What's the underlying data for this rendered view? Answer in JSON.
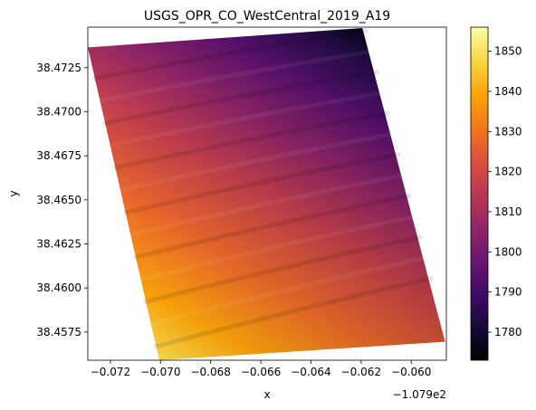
{
  "chart_data": {
    "type": "heatmap",
    "title": "USGS_OPR_CO_WestCentral_2019_A19",
    "xlabel": "x",
    "ylabel": "y",
    "x_offset_label": "−1.079e2",
    "xlim": [
      -0.0729,
      -0.0586
    ],
    "ylim": [
      38.4559,
      38.4748
    ],
    "x_ticks": [
      -0.072,
      -0.07,
      -0.068,
      -0.066,
      -0.064,
      -0.062,
      -0.06
    ],
    "x_tick_labels": [
      "−0.072",
      "−0.070",
      "−0.068",
      "−0.066",
      "−0.064",
      "−0.062",
      "−0.060"
    ],
    "y_ticks": [
      38.4575,
      38.46,
      38.4625,
      38.465,
      38.4675,
      38.47,
      38.4725
    ],
    "y_tick_labels": [
      "38.4575",
      "38.4600",
      "38.4625",
      "38.4650",
      "38.4675",
      "38.4700",
      "38.4725"
    ],
    "footprint_corners": [
      {
        "x": -0.0729,
        "y": 38.47365
      },
      {
        "x": -0.06195,
        "y": 38.47475
      },
      {
        "x": -0.05865,
        "y": 38.45695
      },
      {
        "x": -0.07005,
        "y": 38.4559
      }
    ],
    "colorbar": {
      "colormap": "inferno",
      "min": 1773,
      "max": 1856,
      "ticks": [
        1780,
        1790,
        1800,
        1810,
        1820,
        1830,
        1840,
        1850
      ],
      "tick_labels": [
        "1780",
        "1790",
        "1800",
        "1810",
        "1820",
        "1830",
        "1840",
        "1850"
      ]
    },
    "elevation_trend": {
      "highest": {
        "x": -0.0695,
        "y": 38.4562,
        "value": 1855
      },
      "lowest": {
        "x": -0.0615,
        "y": 38.4745,
        "value": 1773
      }
    },
    "grid": false,
    "legend": "none"
  }
}
